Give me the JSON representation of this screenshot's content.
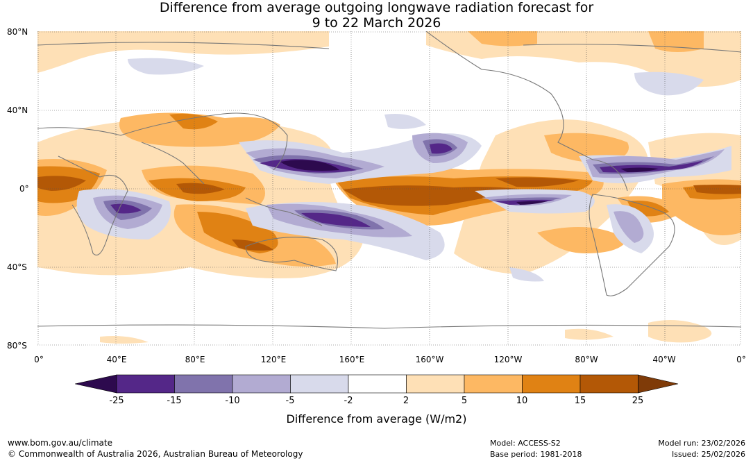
{
  "title": {
    "line1": "Difference from average outgoing longwave radiation forecast for",
    "line2": "9 to 22 March 2026"
  },
  "map": {
    "lat_labels": [
      "80°N",
      "40°N",
      "0°",
      "40°S",
      "80°S"
    ],
    "lon_labels": [
      "0°",
      "40°E",
      "80°E",
      "120°E",
      "160°E",
      "160°W",
      "120°W",
      "80°W",
      "40°W",
      "0°"
    ]
  },
  "colorbar": {
    "ticks": [
      "-25",
      "-15",
      "-10",
      "-5",
      "-2",
      "2",
      "5",
      "10",
      "15",
      "25"
    ],
    "label": "Difference from average (W/m2)",
    "colors": {
      "lt_minus25": "#2d0a4e",
      "minus25_minus15": "#542788",
      "minus15_minus10": "#8073ac",
      "minus10_minus5": "#b2abd2",
      "minus5_minus2": "#d8daeb",
      "minus2_2": "#ffffff",
      "p2_5": "#fee0b6",
      "p5_10": "#fdb863",
      "p10_15": "#e08214",
      "p15_25": "#b35806",
      "gt25": "#7f3b08"
    }
  },
  "footer": {
    "url": "www.bom.gov.au/climate",
    "copyright": "© Commonwealth of Australia 2026, Australian Bureau of Meteorology",
    "model": "Model: ACCESS-S2",
    "base_period": "Base period: 1981-2018",
    "model_run": "Model run: 23/02/2026",
    "issued": "Issued: 25/02/2026"
  }
}
